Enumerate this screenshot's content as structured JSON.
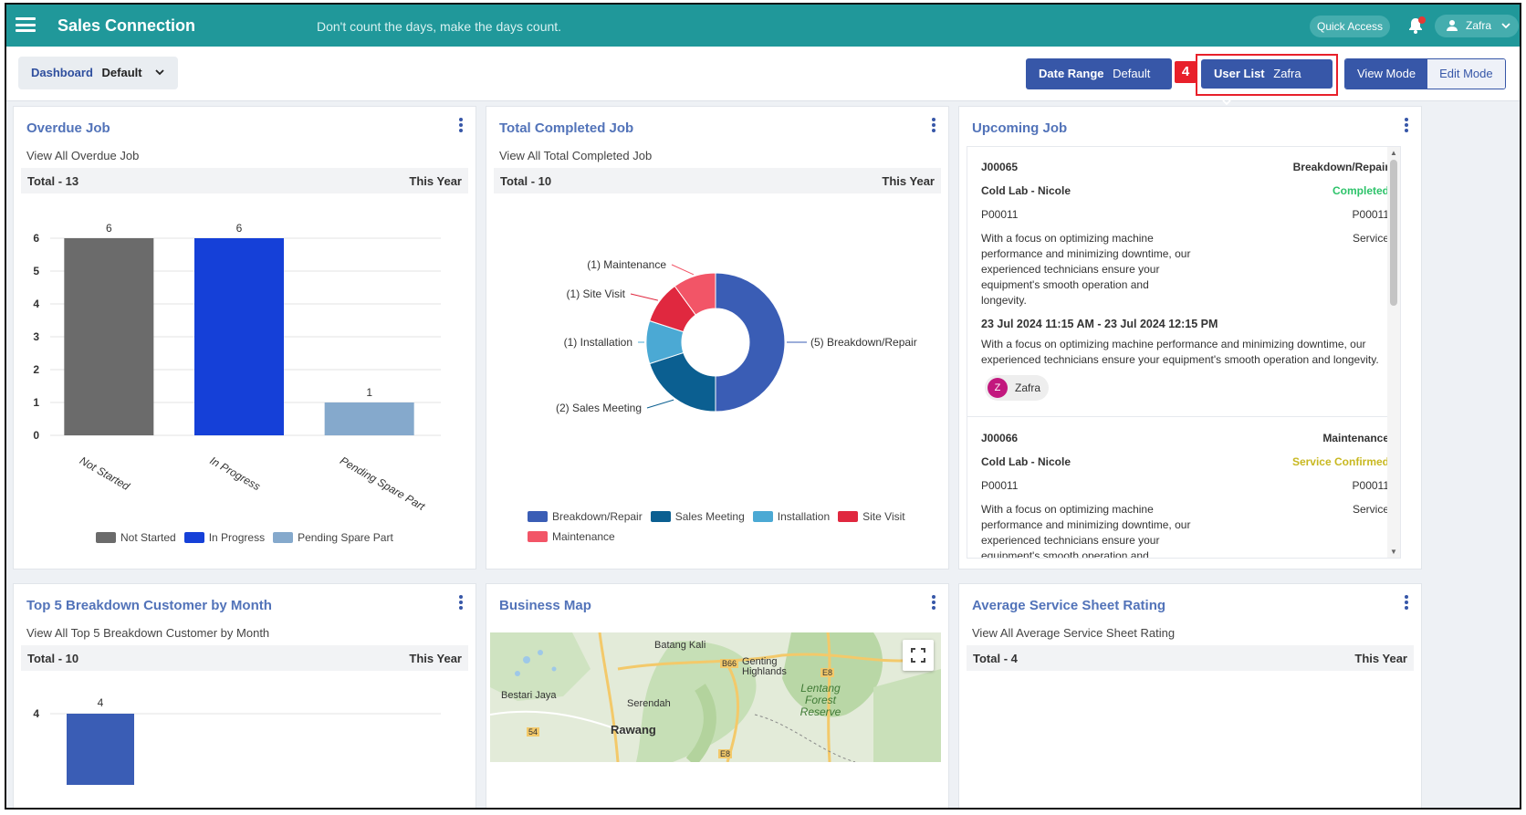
{
  "header": {
    "brand": "Sales Connection",
    "tagline": "Don't count the days, make the days count.",
    "quick_access": "Quick Access",
    "user": "Zafra"
  },
  "toolbar": {
    "dashboard_label": "Dashboard",
    "dashboard_value": "Default",
    "date_range_label": "Date Range",
    "date_range_value": "Default",
    "step_badge": "4",
    "user_list_label": "User List",
    "user_list_value": "Zafra",
    "view_mode": "View Mode",
    "edit_mode": "Edit Mode"
  },
  "overdue": {
    "title": "Overdue Job",
    "sub": "View All Overdue Job",
    "total": "Total - 13",
    "period": "This Year",
    "chart_data": {
      "type": "bar",
      "categories": [
        "Not Started",
        "In Progress",
        "Pending Spare Part"
      ],
      "values": [
        6,
        6,
        1
      ],
      "colors": [
        "#6b6b6b",
        "#1540d8",
        "#85a9cc"
      ],
      "yticks": [
        0,
        1,
        2,
        3,
        4,
        5,
        6
      ],
      "ylim": [
        0,
        6
      ],
      "legend": [
        "Not Started",
        "In Progress",
        "Pending Spare Part"
      ]
    }
  },
  "completed": {
    "title": "Total Completed Job",
    "sub": "View All Total Completed Job",
    "total": "Total - 10",
    "period": "This Year",
    "chart_data": {
      "type": "pie",
      "labels": [
        "Breakdown/Repair",
        "Sales Meeting",
        "Installation",
        "Site Visit",
        "Maintenance"
      ],
      "values": [
        5,
        2,
        1,
        1,
        1
      ],
      "colors": [
        "#3a5db5",
        "#0b5f91",
        "#4ba9d4",
        "#e0283f",
        "#f25567"
      ],
      "callouts": [
        "(5) Breakdown/Repair",
        "(2) Sales Meeting",
        "(1) Installation",
        "(1) Site Visit",
        "(1) Maintenance"
      ]
    }
  },
  "upcoming": {
    "title": "Upcoming Job",
    "jobs": [
      {
        "id": "J00065",
        "type": "Breakdown/Repair",
        "customer": "Cold Lab - Nicole",
        "status": "Completed",
        "status_color": "#2dc36a",
        "code_left": "P00011",
        "code_right": "P00011",
        "category": "Service",
        "desc": "With a focus on optimizing machine performance and minimizing downtime, our experienced technicians ensure your equipment's smooth operation and longevity.",
        "datetime": "23 Jul 2024 11:15 AM - 23 Jul 2024 12:15 PM",
        "desc2": "With a focus on optimizing machine performance and minimizing downtime, our experienced technicians ensure your equipment's smooth operation and longevity.",
        "assignee_initial": "Z",
        "assignee": "Zafra"
      },
      {
        "id": "J00066",
        "type": "Maintenance",
        "customer": "Cold Lab - Nicole",
        "status": "Service Confirmed",
        "status_color": "#c8b820",
        "code_left": "P00011",
        "code_right": "P00011",
        "category": "Service",
        "desc": "With a focus on optimizing machine performance and minimizing downtime, our experienced technicians ensure your equipment's smooth operation and"
      }
    ]
  },
  "top5": {
    "title": "Top 5 Breakdown Customer by Month",
    "sub": "View All Top 5 Breakdown Customer by Month",
    "total": "Total - 10",
    "period": "This Year",
    "chart_data": {
      "type": "bar",
      "categories": [
        ""
      ],
      "values": [
        4
      ],
      "colors": [
        "#3a5db5"
      ],
      "yticks": [
        4
      ]
    }
  },
  "map": {
    "title": "Business Map",
    "places": [
      "Batang Kali",
      "Genting Highlands",
      "Lentang Forest Reserve",
      "Bestari Jaya",
      "Serendah",
      "Rawang",
      "B66",
      "E8",
      "54",
      "E8"
    ]
  },
  "rating": {
    "title": "Average Service Sheet Rating",
    "sub": "View All Average Service Sheet Rating",
    "total": "Total - 4",
    "period": "This Year"
  }
}
